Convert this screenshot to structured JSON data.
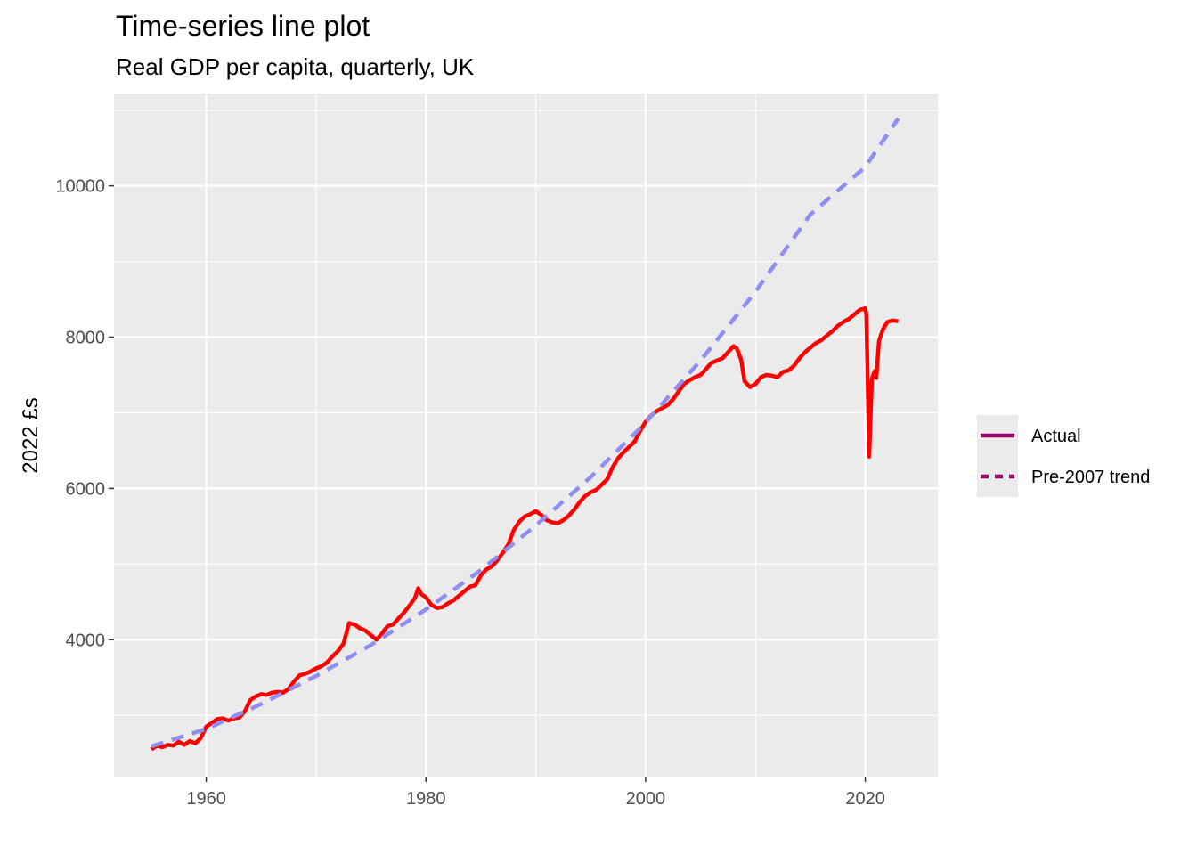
{
  "chart_data": {
    "type": "line",
    "title": "Time-series line plot",
    "subtitle": "Real GDP per capita, quarterly, UK",
    "xlabel": "",
    "ylabel": "2022 £s",
    "xlim": [
      1951.6,
      2026.6
    ],
    "ylim": [
      2190,
      11220
    ],
    "x_ticks": [
      1960,
      1980,
      2000,
      2020
    ],
    "y_ticks": [
      4000,
      6000,
      8000,
      10000
    ],
    "grid": true,
    "legend_position": "right",
    "colors": {
      "panel_bg": "#ebebeb",
      "grid": "#ffffff",
      "actual_line": "#ff0000",
      "trend_line": "#8f8ff2",
      "legend_key": "#990066"
    },
    "series": [
      {
        "name": "Actual",
        "style": "solid",
        "points": [
          [
            1955.0,
            2550
          ],
          [
            1955.5,
            2600
          ],
          [
            1956.0,
            2580
          ],
          [
            1956.5,
            2610
          ],
          [
            1957.0,
            2600
          ],
          [
            1957.5,
            2650
          ],
          [
            1958.0,
            2610
          ],
          [
            1958.5,
            2660
          ],
          [
            1959.0,
            2630
          ],
          [
            1959.5,
            2700
          ],
          [
            1960.0,
            2850
          ],
          [
            1960.5,
            2900
          ],
          [
            1961.0,
            2950
          ],
          [
            1961.5,
            2960
          ],
          [
            1962.0,
            2930
          ],
          [
            1962.5,
            2960
          ],
          [
            1963.0,
            2970
          ],
          [
            1963.5,
            3050
          ],
          [
            1964.0,
            3200
          ],
          [
            1964.5,
            3250
          ],
          [
            1965.0,
            3280
          ],
          [
            1965.5,
            3270
          ],
          [
            1966.0,
            3300
          ],
          [
            1966.5,
            3310
          ],
          [
            1967.0,
            3300
          ],
          [
            1967.5,
            3350
          ],
          [
            1968.0,
            3450
          ],
          [
            1968.5,
            3530
          ],
          [
            1969.0,
            3550
          ],
          [
            1969.5,
            3580
          ],
          [
            1970.0,
            3620
          ],
          [
            1970.5,
            3650
          ],
          [
            1971.0,
            3700
          ],
          [
            1971.5,
            3780
          ],
          [
            1972.0,
            3850
          ],
          [
            1972.5,
            3950
          ],
          [
            1973.0,
            4220
          ],
          [
            1973.5,
            4200
          ],
          [
            1974.0,
            4150
          ],
          [
            1974.5,
            4120
          ],
          [
            1975.0,
            4060
          ],
          [
            1975.5,
            4000
          ],
          [
            1976.0,
            4080
          ],
          [
            1976.5,
            4180
          ],
          [
            1977.0,
            4200
          ],
          [
            1977.5,
            4280
          ],
          [
            1978.0,
            4360
          ],
          [
            1978.5,
            4450
          ],
          [
            1979.0,
            4550
          ],
          [
            1979.3,
            4680
          ],
          [
            1979.6,
            4600
          ],
          [
            1980.0,
            4560
          ],
          [
            1980.5,
            4460
          ],
          [
            1981.0,
            4420
          ],
          [
            1981.5,
            4430
          ],
          [
            1982.0,
            4480
          ],
          [
            1982.5,
            4520
          ],
          [
            1983.0,
            4580
          ],
          [
            1983.5,
            4640
          ],
          [
            1984.0,
            4700
          ],
          [
            1984.5,
            4720
          ],
          [
            1985.0,
            4850
          ],
          [
            1985.5,
            4930
          ],
          [
            1986.0,
            4970
          ],
          [
            1986.5,
            5050
          ],
          [
            1987.0,
            5150
          ],
          [
            1987.5,
            5260
          ],
          [
            1988.0,
            5450
          ],
          [
            1988.5,
            5560
          ],
          [
            1989.0,
            5630
          ],
          [
            1989.5,
            5660
          ],
          [
            1990.0,
            5700
          ],
          [
            1990.5,
            5650
          ],
          [
            1991.0,
            5580
          ],
          [
            1991.5,
            5550
          ],
          [
            1992.0,
            5540
          ],
          [
            1992.5,
            5580
          ],
          [
            1993.0,
            5640
          ],
          [
            1993.5,
            5720
          ],
          [
            1994.0,
            5820
          ],
          [
            1994.5,
            5900
          ],
          [
            1995.0,
            5950
          ],
          [
            1995.5,
            5980
          ],
          [
            1996.0,
            6050
          ],
          [
            1996.5,
            6120
          ],
          [
            1997.0,
            6280
          ],
          [
            1997.5,
            6400
          ],
          [
            1998.0,
            6480
          ],
          [
            1998.5,
            6550
          ],
          [
            1999.0,
            6620
          ],
          [
            1999.5,
            6760
          ],
          [
            2000.0,
            6880
          ],
          [
            2000.5,
            6960
          ],
          [
            2001.0,
            7020
          ],
          [
            2001.5,
            7060
          ],
          [
            2002.0,
            7100
          ],
          [
            2002.5,
            7180
          ],
          [
            2003.0,
            7280
          ],
          [
            2003.5,
            7380
          ],
          [
            2004.0,
            7430
          ],
          [
            2004.5,
            7470
          ],
          [
            2005.0,
            7500
          ],
          [
            2005.5,
            7580
          ],
          [
            2006.0,
            7660
          ],
          [
            2006.5,
            7690
          ],
          [
            2007.0,
            7720
          ],
          [
            2007.5,
            7800
          ],
          [
            2008.0,
            7880
          ],
          [
            2008.3,
            7850
          ],
          [
            2008.7,
            7700
          ],
          [
            2009.0,
            7420
          ],
          [
            2009.5,
            7340
          ],
          [
            2010.0,
            7380
          ],
          [
            2010.5,
            7470
          ],
          [
            2011.0,
            7500
          ],
          [
            2011.5,
            7490
          ],
          [
            2012.0,
            7470
          ],
          [
            2012.5,
            7540
          ],
          [
            2013.0,
            7560
          ],
          [
            2013.5,
            7620
          ],
          [
            2014.0,
            7720
          ],
          [
            2014.5,
            7800
          ],
          [
            2015.0,
            7860
          ],
          [
            2015.5,
            7920
          ],
          [
            2016.0,
            7960
          ],
          [
            2016.5,
            8020
          ],
          [
            2017.0,
            8080
          ],
          [
            2017.5,
            8150
          ],
          [
            2018.0,
            8200
          ],
          [
            2018.5,
            8240
          ],
          [
            2019.0,
            8300
          ],
          [
            2019.5,
            8360
          ],
          [
            2020.0,
            8380
          ],
          [
            2020.1,
            8300
          ],
          [
            2020.35,
            6420
          ],
          [
            2020.6,
            7450
          ],
          [
            2020.85,
            7550
          ],
          [
            2021.0,
            7460
          ],
          [
            2021.25,
            7950
          ],
          [
            2021.6,
            8100
          ],
          [
            2022.0,
            8200
          ],
          [
            2022.5,
            8220
          ],
          [
            2023.0,
            8210
          ]
        ]
      },
      {
        "name": "Pre-2007 trend",
        "style": "dashed",
        "points": [
          [
            1955.0,
            2590
          ],
          [
            1960.0,
            2820
          ],
          [
            1965.0,
            3150
          ],
          [
            1970.0,
            3520
          ],
          [
            1975.0,
            3930
          ],
          [
            1980.0,
            4400
          ],
          [
            1985.0,
            4920
          ],
          [
            1990.0,
            5510
          ],
          [
            1995.0,
            6150
          ],
          [
            2000.0,
            6870
          ],
          [
            2005.0,
            7690
          ],
          [
            2010.0,
            8600
          ],
          [
            2015.0,
            9620
          ],
          [
            2020.0,
            10250
          ],
          [
            2023.0,
            10890
          ]
        ]
      }
    ]
  }
}
